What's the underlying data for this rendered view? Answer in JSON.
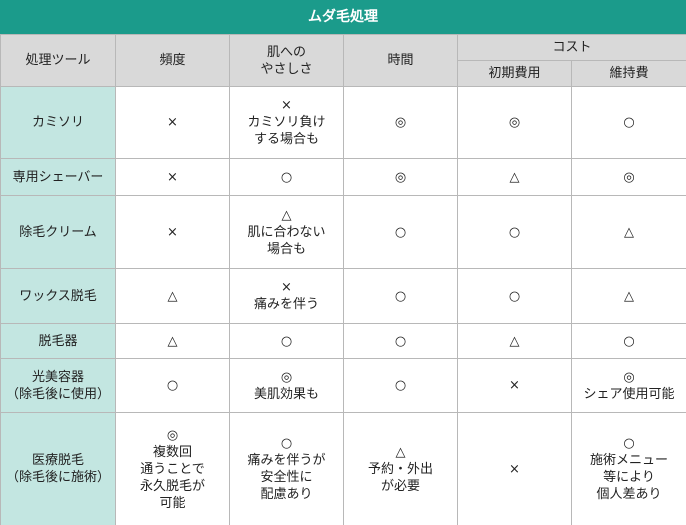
{
  "title": "ムダ毛処理",
  "table": {
    "header": [
      "処理ツール",
      "頻度",
      "肌への\nやさしさ",
      "時間",
      "コスト"
    ],
    "subheader": [
      "初期費用",
      "維持費"
    ],
    "rows": [
      [
        "カミソリ",
        "×",
        "×\nカミソリ負け\nする場合も",
        "◎",
        "◎",
        "○"
      ],
      [
        "専用シェーバー",
        "×",
        "○",
        "◎",
        "△",
        "◎"
      ],
      [
        "除毛クリーム",
        "×",
        "△\n肌に合わない\n場合も",
        "○",
        "○",
        "△"
      ],
      [
        "ワックス脱毛",
        "△",
        "×\n痛みを伴う",
        "○",
        "○",
        "△"
      ],
      [
        "脱毛器",
        "△",
        "○",
        "○",
        "△",
        "○"
      ],
      [
        "光美容器\n（除毛後に使用）",
        "○",
        "◎\n美肌効果も",
        "○",
        "×",
        "◎\nシェア使用可能"
      ],
      [
        "医療脱毛\n（除毛後に施術）",
        "◎\n複数回\n通うことで\n永久脱毛が\n可能",
        "○\n痛みを伴うが\n安全性に\n配慮あり",
        "△\n予約・外出\nが必要",
        "×",
        "○\n施術メニュー\n等により\n個人差あり"
      ]
    ]
  }
}
